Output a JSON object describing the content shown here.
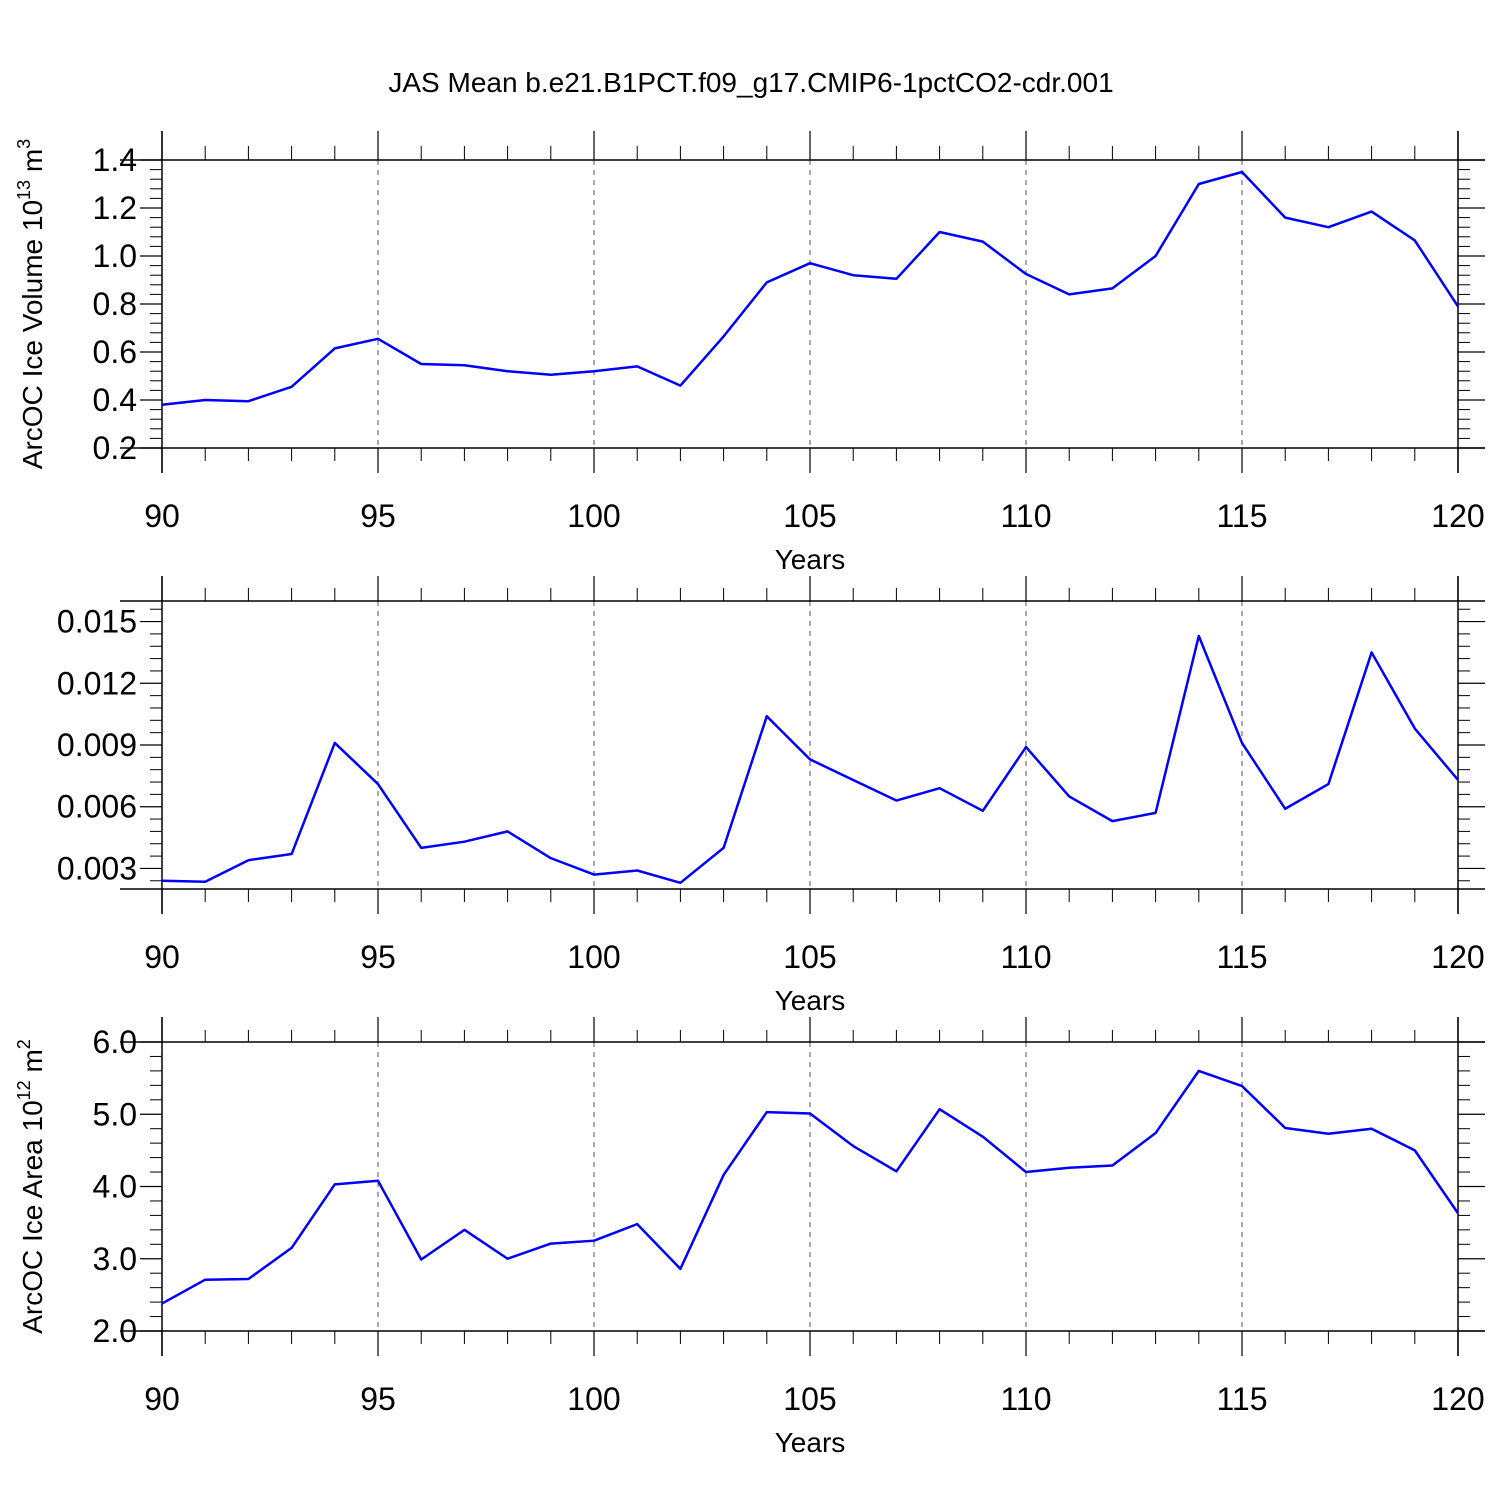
{
  "title": "JAS Mean b.e21.B1PCT.f09_g17.CMIP6-1pctCO2-cdr.001",
  "line_color": "#0000ff",
  "chart_data": [
    {
      "type": "line",
      "xlabel": "Years",
      "ylabel_main": "ArcOC Ice Volume 10",
      "ylabel_exp": "13",
      "ylabel_unit": " m",
      "ylabel_unit_exp": "3",
      "xlim": [
        90,
        120
      ],
      "ylim": [
        0.2,
        1.4
      ],
      "xticks": [
        90,
        95,
        100,
        105,
        110,
        115,
        120
      ],
      "xtick_labels": [
        "90",
        "95",
        "100",
        "105",
        "110",
        "115",
        "120"
      ],
      "yticks": [
        0.2,
        0.4,
        0.6,
        0.8,
        1.0,
        1.2,
        1.4
      ],
      "ytick_labels": [
        "0.2",
        "0.4",
        "0.6",
        "0.8",
        "1.0",
        "1.2",
        "1.4"
      ],
      "grid": "vertical-dashed",
      "x": [
        90,
        91,
        92,
        93,
        94,
        95,
        96,
        97,
        98,
        99,
        100,
        101,
        102,
        103,
        104,
        105,
        106,
        107,
        108,
        109,
        110,
        111,
        112,
        113,
        114,
        115,
        116,
        117,
        118,
        119,
        120
      ],
      "y": [
        0.38,
        0.4,
        0.395,
        0.455,
        0.615,
        0.655,
        0.55,
        0.545,
        0.52,
        0.505,
        0.52,
        0.54,
        0.46,
        0.665,
        0.89,
        0.97,
        0.92,
        0.905,
        1.1,
        1.06,
        0.925,
        0.84,
        0.865,
        1.0,
        1.3,
        1.35,
        1.16,
        1.12,
        1.185,
        1.065,
        0.79
      ]
    },
    {
      "type": "line",
      "xlabel": "Years",
      "ylabel_main": "",
      "ylabel_exp": "",
      "ylabel_unit": "",
      "ylabel_unit_exp": "",
      "xlim": [
        90,
        120
      ],
      "ylim": [
        0.002,
        0.016
      ],
      "xticks": [
        90,
        95,
        100,
        105,
        110,
        115,
        120
      ],
      "xtick_labels": [
        "90",
        "95",
        "100",
        "105",
        "110",
        "115",
        "120"
      ],
      "yticks": [
        0.003,
        0.006,
        0.009,
        0.012,
        0.015
      ],
      "ytick_labels": [
        "0.003",
        "0.006",
        "0.009",
        "0.012",
        "0.015"
      ],
      "grid": "vertical-dashed",
      "x": [
        90,
        91,
        92,
        93,
        94,
        95,
        96,
        97,
        98,
        99,
        100,
        101,
        102,
        103,
        104,
        105,
        106,
        107,
        108,
        109,
        110,
        111,
        112,
        113,
        114,
        115,
        116,
        117,
        118,
        119,
        120
      ],
      "y": [
        0.0024,
        0.00235,
        0.0034,
        0.0037,
        0.0091,
        0.0071,
        0.004,
        0.0043,
        0.0048,
        0.0035,
        0.0027,
        0.0029,
        0.0023,
        0.004,
        0.0104,
        0.0083,
        0.0073,
        0.0063,
        0.0069,
        0.0058,
        0.0089,
        0.0065,
        0.0053,
        0.0057,
        0.0143,
        0.0091,
        0.0059,
        0.0071,
        0.0135,
        0.0098,
        0.0073
      ]
    },
    {
      "type": "line",
      "xlabel": "Years",
      "ylabel_main": "ArcOC Ice Area 10",
      "ylabel_exp": "12",
      "ylabel_unit": " m",
      "ylabel_unit_exp": "2",
      "xlim": [
        90,
        120
      ],
      "ylim": [
        2.0,
        6.0
      ],
      "xticks": [
        90,
        95,
        100,
        105,
        110,
        115,
        120
      ],
      "xtick_labels": [
        "90",
        "95",
        "100",
        "105",
        "110",
        "115",
        "120"
      ],
      "yticks": [
        2.0,
        3.0,
        4.0,
        5.0,
        6.0
      ],
      "ytick_labels": [
        "2.0",
        "3.0",
        "4.0",
        "5.0",
        "6.0"
      ],
      "grid": "vertical-dashed",
      "x": [
        90,
        91,
        92,
        93,
        94,
        95,
        96,
        97,
        98,
        99,
        100,
        101,
        102,
        103,
        104,
        105,
        106,
        107,
        108,
        109,
        110,
        111,
        112,
        113,
        114,
        115,
        116,
        117,
        118,
        119,
        120
      ],
      "y": [
        2.38,
        2.71,
        2.72,
        3.15,
        4.03,
        4.08,
        2.99,
        3.4,
        3.0,
        3.21,
        3.25,
        3.48,
        2.86,
        4.16,
        5.03,
        5.01,
        4.56,
        4.21,
        5.07,
        4.69,
        4.2,
        4.26,
        4.29,
        4.74,
        5.6,
        5.39,
        4.81,
        4.73,
        4.8,
        4.5,
        3.63
      ]
    }
  ]
}
